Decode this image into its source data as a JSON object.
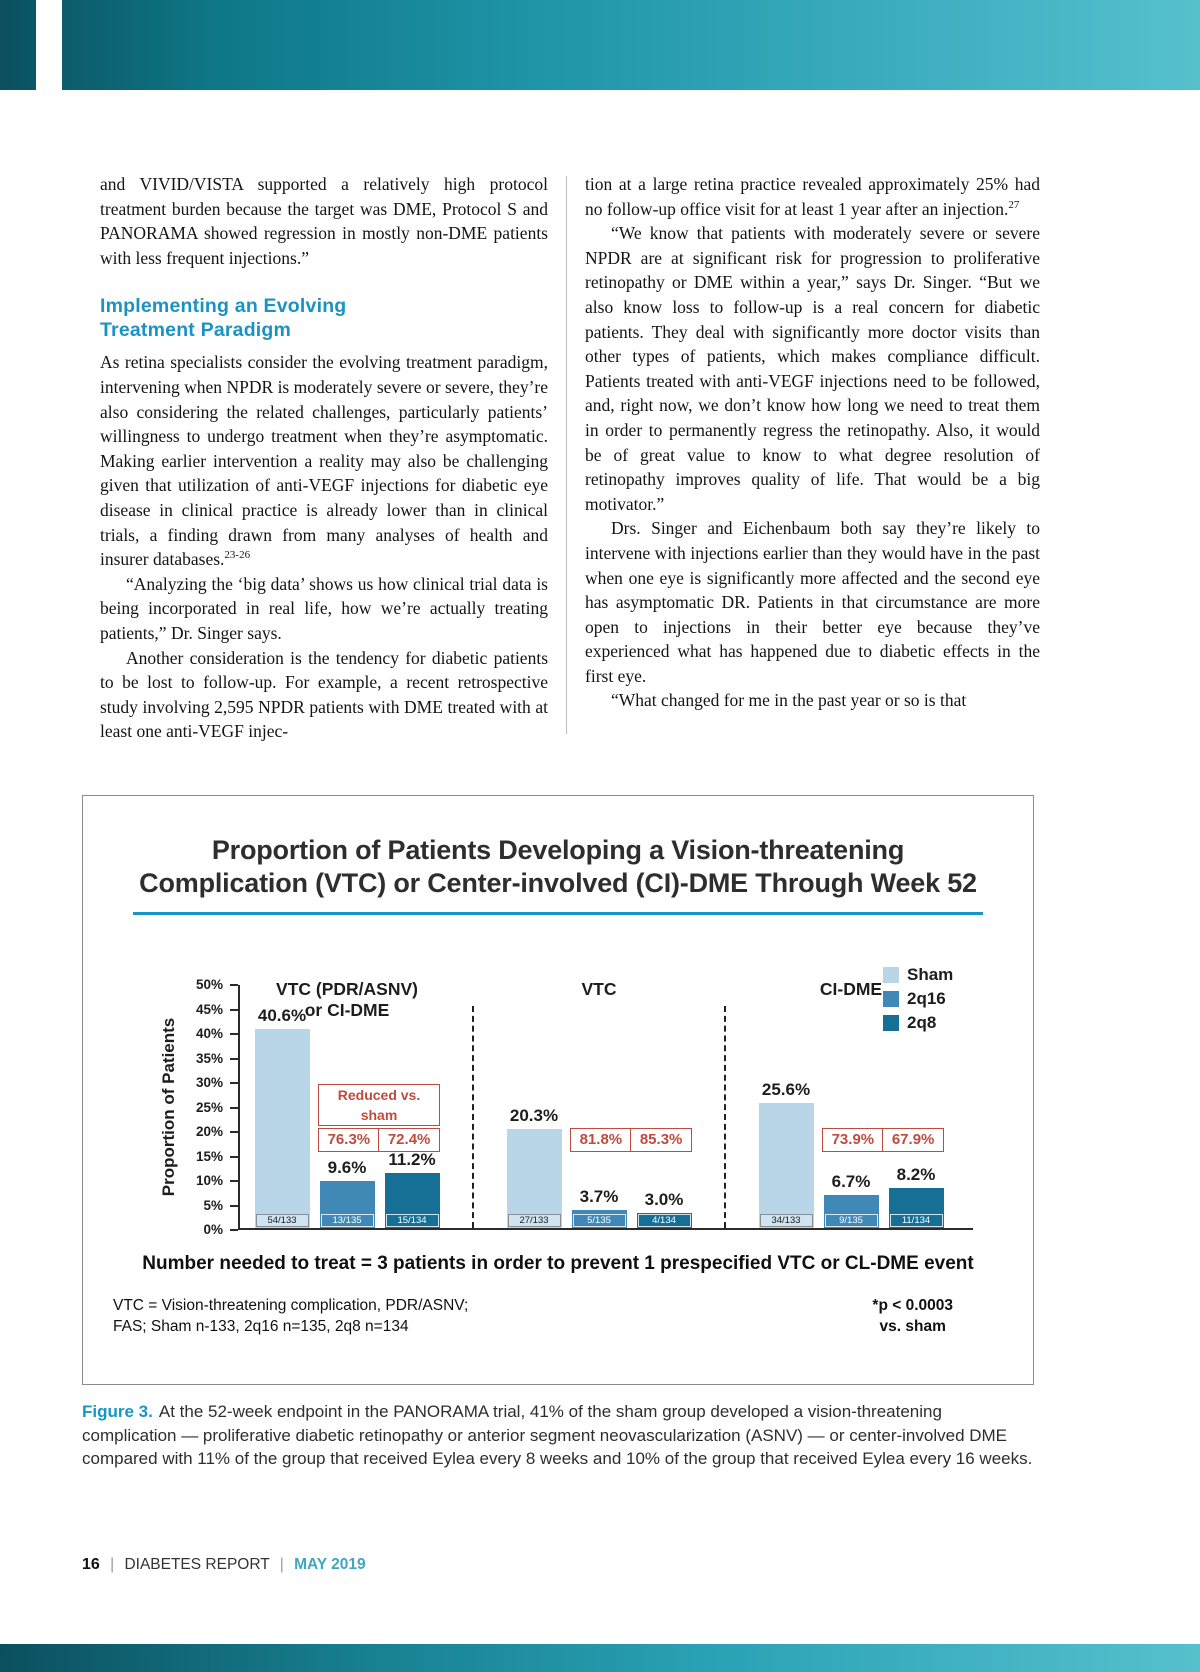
{
  "article": {
    "heading": {
      "line1": "Implementing an Evolving",
      "line2": "Treatment Paradigm"
    },
    "left_column": {
      "p1": "and VIVID/VISTA supported a relatively high protocol treatment burden because the target was DME, Protocol S and PANORAMA showed regression in mostly non-DME patients with less frequent injections.”",
      "p2": "As retina specialists consider the evolving treatment paradigm, intervening when NPDR is moderately severe or severe, they’re also considering the related challenges, particularly patients’ willingness to undergo treatment when they’re asymptomatic. Making earlier intervention a reality may also be challenging given that utilization of anti-VEGF injections for diabetic eye disease in clinical practice is already lower than in clinical trials, a finding drawn from many analyses of health and insurer databases.",
      "p2_ref": "23-26",
      "p3": "“Analyzing the ‘big data’ shows us how clinical trial data is being incorporated in real life, how we’re actually treating patients,” Dr. Singer says.",
      "p4": "Another consideration is the tendency for diabetic patients to be lost to follow-up. For example, a recent retrospective study involving 2,595 NPDR patients with DME treated with at least one anti-VEGF injec-"
    },
    "right_column": {
      "p1": "tion at a large retina practice revealed approximately 25% had no follow-up office visit for at least 1 year after an injection.",
      "p1_ref": "27",
      "p2": "“We know that patients with moderately severe or severe NPDR are at significant risk for progression to proliferative retinopathy or DME within a year,” says Dr. Singer. “But we also know loss to follow-up is a real concern for diabetic patients. They deal with significantly more doctor visits than other types of patients, which makes compliance difficult. Patients treated with anti-VEGF injections need to be followed, and, right now, we don’t know how long we need to treat them in order to permanently regress the retinopathy. Also, it would be of great value to know to what degree resolution of retinopathy improves quality of life. That would be a big motivator.”",
      "p3": "Drs. Singer and Eichenbaum both say they’re likely to intervene with injections earlier than they would have in the past when one eye is significantly more affected and the second eye has asymptomatic DR. Patients in that circumstance are more open to injections in their better eye because they’ve experienced what has happened due to diabetic effects in the first eye.",
      "p4": "“What changed for me in the past year or so is that"
    }
  },
  "chart_data": {
    "type": "bar",
    "title_line1": "Proportion of Patients Developing a Vision-threatening",
    "title_line2": "Complication (VTC) or Center-involved (CI)-DME Through Week 52",
    "ylabel": "Proportion of Patients",
    "ylim": [
      0,
      50
    ],
    "ytick_step": 5,
    "ytick_labels": [
      "0%",
      "5%",
      "10%",
      "15%",
      "20%",
      "25%",
      "30%",
      "35%",
      "40%",
      "45%",
      "50%"
    ],
    "series_colors": {
      "Sham": "#b9d5e8",
      "2q16": "#4089b6",
      "2q8": "#166f94"
    },
    "legend": [
      {
        "label": "Sham",
        "color": "#b9d5e8"
      },
      {
        "label": "2q16",
        "color": "#4089b6"
      },
      {
        "label": "2q8",
        "color": "#166f94"
      }
    ],
    "groups": [
      {
        "label_lines": [
          "VTC (PDR/ASNV)",
          "or CI-DME"
        ],
        "bars": [
          {
            "series": "Sham",
            "value": 40.6,
            "value_label": "40.6%",
            "n_label": "54/133"
          },
          {
            "series": "2q16",
            "value": 9.6,
            "value_label": "9.6%",
            "n_label": "13/135"
          },
          {
            "series": "2q8",
            "value": 11.2,
            "value_label": "11.2%",
            "n_label": "15/134"
          }
        ],
        "reduction_header": "Reduced vs. sham",
        "reductions": [
          "76.3%",
          "72.4%"
        ]
      },
      {
        "label_lines": [
          "VTC"
        ],
        "bars": [
          {
            "series": "Sham",
            "value": 20.3,
            "value_label": "20.3%",
            "n_label": "27/133"
          },
          {
            "series": "2q16",
            "value": 3.7,
            "value_label": "3.7%",
            "n_label": "5/135"
          },
          {
            "series": "2q8",
            "value": 3.0,
            "value_label": "3.0%",
            "n_label": "4/134"
          }
        ],
        "reductions": [
          "81.8%",
          "85.3%"
        ]
      },
      {
        "label_lines": [
          "CI-DME"
        ],
        "bars": [
          {
            "series": "Sham",
            "value": 25.6,
            "value_label": "25.6%",
            "n_label": "34/133"
          },
          {
            "series": "2q16",
            "value": 6.7,
            "value_label": "6.7%",
            "n_label": "9/135"
          },
          {
            "series": "2q8",
            "value": 8.2,
            "value_label": "8.2%",
            "n_label": "11/134"
          }
        ],
        "reductions": [
          "73.9%",
          "67.9%"
        ]
      }
    ],
    "nnt_note": "Number needed to treat = 3 patients in order to prevent 1 prespecified VTC or CL-DME event",
    "footnotes": {
      "left_line1": "VTC = Vision-threatening complication, PDR/ASNV;",
      "left_line2": "FAS; Sham n-133, 2q16 n=135, 2q8 n=134",
      "right_line1": "*p < 0.0003",
      "right_line2": "vs. sham"
    }
  },
  "figure_caption": {
    "label": "Figure 3.",
    "text": "At the 52-week endpoint in the PANORAMA trial, 41% of the sham group developed a vision-threatening complication — proliferative diabetic retinopathy or anterior segment neovascularization (ASNV) — or center-involved DME compared with 11% of the group that received Eylea every 8 weeks and 10% of the group that received Eylea every 16 weeks."
  },
  "footer": {
    "page_number": "16",
    "separator": "|",
    "publication": "DIABETES REPORT",
    "date": "MAY 2019"
  }
}
